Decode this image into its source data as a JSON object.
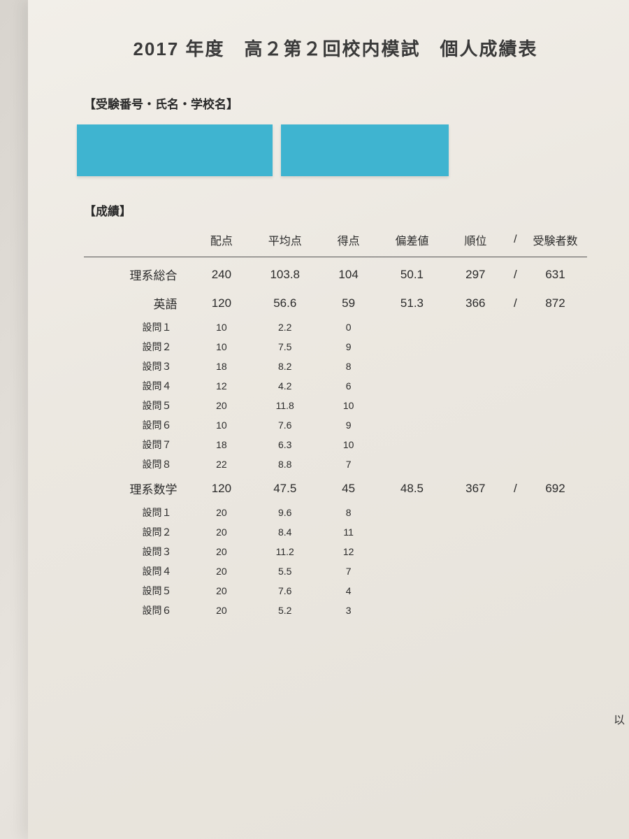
{
  "title": "2017 年度　高２第２回校内模試　個人成績表",
  "section_id_label": "【受験番号・氏名・学校名】",
  "section_grades_label": "【成績】",
  "redaction_color": "#3fb4d0",
  "columns": {
    "subject": "",
    "allotted": "配点",
    "average": "平均点",
    "score": "得点",
    "deviation": "偏差値",
    "rank": "順位",
    "slash": "/",
    "examinees": "受験者数"
  },
  "rows": [
    {
      "type": "main",
      "label": "理系総合",
      "allotted": "240",
      "average": "103.8",
      "score": "104",
      "deviation": "50.1",
      "rank": "297",
      "slash": "/",
      "examinees": "631"
    },
    {
      "type": "main",
      "label": "英語",
      "allotted": "120",
      "average": "56.6",
      "score": "59",
      "deviation": "51.3",
      "rank": "366",
      "slash": "/",
      "examinees": "872"
    },
    {
      "type": "sub",
      "label": "設問１",
      "allotted": "10",
      "average": "2.2",
      "score": "0"
    },
    {
      "type": "sub",
      "label": "設問２",
      "allotted": "10",
      "average": "7.5",
      "score": "9"
    },
    {
      "type": "sub",
      "label": "設問３",
      "allotted": "18",
      "average": "8.2",
      "score": "8"
    },
    {
      "type": "sub",
      "label": "設問４",
      "allotted": "12",
      "average": "4.2",
      "score": "6"
    },
    {
      "type": "sub",
      "label": "設問５",
      "allotted": "20",
      "average": "11.8",
      "score": "10"
    },
    {
      "type": "sub",
      "label": "設問６",
      "allotted": "10",
      "average": "7.6",
      "score": "9"
    },
    {
      "type": "sub",
      "label": "設問７",
      "allotted": "18",
      "average": "6.3",
      "score": "10"
    },
    {
      "type": "sub",
      "label": "設問８",
      "allotted": "22",
      "average": "8.8",
      "score": "7"
    },
    {
      "type": "main",
      "label": "理系数学",
      "allotted": "120",
      "average": "47.5",
      "score": "45",
      "deviation": "48.5",
      "rank": "367",
      "slash": "/",
      "examinees": "692"
    },
    {
      "type": "sub",
      "label": "設問１",
      "allotted": "20",
      "average": "9.6",
      "score": "8"
    },
    {
      "type": "sub",
      "label": "設問２",
      "allotted": "20",
      "average": "8.4",
      "score": "11"
    },
    {
      "type": "sub",
      "label": "設問３",
      "allotted": "20",
      "average": "11.2",
      "score": "12"
    },
    {
      "type": "sub",
      "label": "設問４",
      "allotted": "20",
      "average": "5.5",
      "score": "7"
    },
    {
      "type": "sub",
      "label": "設問５",
      "allotted": "20",
      "average": "7.6",
      "score": "4"
    },
    {
      "type": "sub",
      "label": "設問６",
      "allotted": "20",
      "average": "5.2",
      "score": "3"
    }
  ],
  "edge_text": "以"
}
